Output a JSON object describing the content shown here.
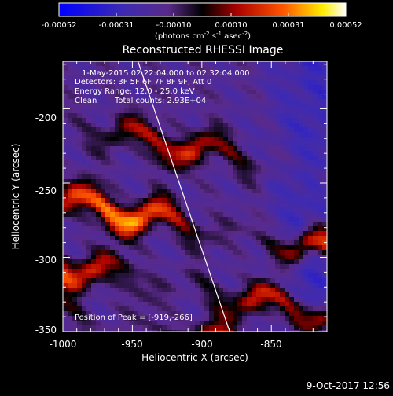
{
  "chart_data": {
    "type": "heatmap",
    "title": "Reconstructed RHESSI Image",
    "xlabel": "Heliocentric X (arcsec)",
    "ylabel": "Heliocentric Y (arcsec)",
    "xlim": [
      -1000,
      -810
    ],
    "ylim": [
      -350,
      -168
    ],
    "xticks": [
      "-1000",
      "-950",
      "-900",
      "-850"
    ],
    "xtick_values": [
      -1000,
      -950,
      -900,
      -850
    ],
    "yticks": [
      "-350",
      "-300",
      "-250",
      "-200"
    ],
    "ytick_values": [
      -350,
      -300,
      -250,
      -200
    ],
    "colorbar": {
      "min": -0.00052,
      "max": 0.00052,
      "ticks": [
        "-0.00052",
        "-0.00031",
        "-0.00010",
        "0.00010",
        "0.00031",
        "0.00052"
      ],
      "unit_label": "(photons cm",
      "unit_exp1": "-2",
      "unit_mid1": " s",
      "unit_exp2": "-1",
      "unit_mid2": " asec",
      "unit_exp3": "-2",
      "unit_end": ")"
    },
    "annotations": {
      "time": "1-May-2015 02:22:04.000 to 02:32:04.000",
      "detectors": "Detectors: 3F 5F 6F 7F 8F 9F, Att 0",
      "energy": "Energy Range: 12.0 - 25.0 keV",
      "clean": "Clean",
      "counts": "Total counts: 2.93E+04",
      "peak": "Position of Peak = [-919,-266]"
    },
    "bands": [
      {
        "y_center": -210,
        "amplitude": 0.00034
      },
      {
        "y_center": -262,
        "amplitude": 0.00052
      },
      {
        "y_center": -305,
        "amplitude": 0.0004
      },
      {
        "y_center": -338,
        "amplitude": 0.0003
      }
    ],
    "limb_line": {
      "x": [
        -946,
        -880
      ],
      "y": [
        -168,
        -350
      ]
    },
    "colors": {
      "negative_end": "#0000ff",
      "negative_mid": "#5a3cc8",
      "zero": "#000000",
      "positive_low": "#aa0000",
      "positive_mid": "#ff5500",
      "positive_high": "#ffee00",
      "positive_end": "#ffffff"
    }
  },
  "footer": {
    "date": "9-Oct-2017 12:56"
  }
}
